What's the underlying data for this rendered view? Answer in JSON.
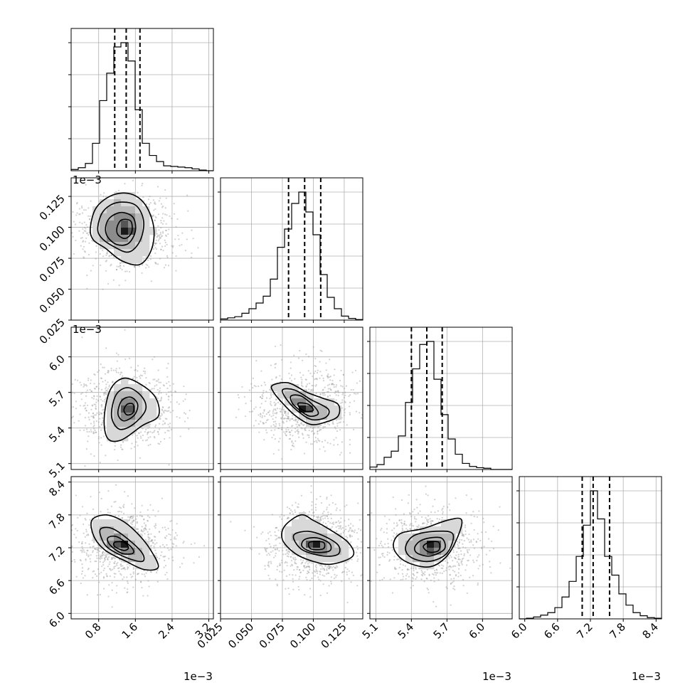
{
  "chart_data": {
    "type": "corner",
    "grid": true,
    "quantile_line_style": "dashed",
    "parameters": [
      {
        "range": [
          0.2,
          3.3
        ],
        "ticks": [
          0.8,
          1.6,
          2.4,
          3.2
        ],
        "tick_labels": [
          "0.8",
          "1.6",
          "2.4",
          "3.2"
        ],
        "offset_label": "1e−3",
        "quantiles": [
          1.15,
          1.4,
          1.7
        ],
        "mode": 1.4
      },
      {
        "range": [
          0.025,
          0.14
        ],
        "ticks": [
          0.025,
          0.05,
          0.075,
          0.1,
          0.125
        ],
        "tick_labels": [
          "0.025",
          "0.050",
          "0.075",
          "0.100",
          "0.125"
        ],
        "offset_label": "",
        "quantiles": [
          0.08,
          0.093,
          0.106
        ],
        "mode": 0.095
      },
      {
        "range": [
          5.05,
          6.25
        ],
        "ticks": [
          5.1,
          5.4,
          5.7,
          6.0
        ],
        "tick_labels": [
          "5.1",
          "5.4",
          "5.7",
          "6.0"
        ],
        "offset_label": "1e−3",
        "quantiles": [
          5.4,
          5.53,
          5.66
        ],
        "mode": 5.55
      },
      {
        "range": [
          5.9,
          8.5
        ],
        "ticks": [
          6.0,
          6.6,
          7.2,
          7.8,
          8.4
        ],
        "tick_labels": [
          "6.0",
          "6.6",
          "7.2",
          "7.8",
          "8.4"
        ],
        "offset_label": "1e−3",
        "quantiles": [
          7.05,
          7.25,
          7.55
        ],
        "mode": 7.25
      }
    ],
    "histograms": [
      {
        "param": 0,
        "bin_edges": [
          0.2,
          0.355,
          0.51,
          0.665,
          0.82,
          0.975,
          1.13,
          1.285,
          1.44,
          1.595,
          1.75,
          1.905,
          2.06,
          2.215,
          2.37,
          2.525,
          2.68,
          2.835,
          2.99,
          3.145,
          3.3
        ],
        "counts": [
          2,
          5,
          12,
          45,
          115,
          160,
          203,
          210,
          180,
          100,
          45,
          25,
          15,
          8,
          7,
          6,
          5,
          3,
          1,
          0
        ]
      },
      {
        "param": 1,
        "bin_edges": [
          0.025,
          0.03075,
          0.0365,
          0.04225,
          0.048,
          0.05375,
          0.0595,
          0.06525,
          0.071,
          0.07675,
          0.0825,
          0.08825,
          0.094,
          0.09975,
          0.1055,
          0.11125,
          0.117,
          0.12275,
          0.1285,
          0.13425,
          0.14
        ],
        "counts": [
          2,
          4,
          6,
          12,
          20,
          30,
          42,
          72,
          128,
          160,
          205,
          225,
          190,
          150,
          80,
          40,
          20,
          7,
          3,
          1
        ]
      },
      {
        "param": 2,
        "bin_edges": [
          5.05,
          5.11,
          5.17,
          5.23,
          5.29,
          5.35,
          5.41,
          5.47,
          5.53,
          5.59,
          5.65,
          5.71,
          5.77,
          5.83,
          5.89,
          5.95,
          6.01,
          6.07,
          6.13,
          6.19,
          6.25
        ],
        "counts": [
          4,
          8,
          20,
          30,
          55,
          110,
          165,
          205,
          210,
          148,
          90,
          50,
          25,
          10,
          5,
          3,
          2,
          0,
          0,
          0
        ]
      },
      {
        "param": 3,
        "bin_edges": [
          5.9,
          6.03,
          6.16,
          6.29,
          6.42,
          6.55,
          6.68,
          6.81,
          6.94,
          7.07,
          7.2,
          7.33,
          7.46,
          7.59,
          7.72,
          7.85,
          7.98,
          8.11,
          8.24,
          8.37,
          8.5
        ],
        "counts": [
          0,
          1,
          3,
          6,
          10,
          18,
          35,
          60,
          100,
          150,
          205,
          160,
          100,
          70,
          40,
          22,
          10,
          5,
          2,
          1
        ]
      }
    ],
    "joint_distributions": [
      {
        "x_param": 0,
        "y_param": 1,
        "peak": [
          1.4,
          0.097
        ],
        "levels": [
          [
            [
              0.62,
              0.1
            ],
            [
              0.75,
              0.116
            ],
            [
              1.1,
              0.126
            ],
            [
              1.5,
              0.127
            ],
            [
              1.82,
              0.118
            ],
            [
              2.0,
              0.1
            ],
            [
              1.95,
              0.082
            ],
            [
              1.7,
              0.07
            ],
            [
              1.3,
              0.073
            ],
            [
              0.95,
              0.083
            ],
            [
              0.68,
              0.09
            ]
          ],
          [
            [
              0.78,
              0.1
            ],
            [
              0.9,
              0.113
            ],
            [
              1.2,
              0.12
            ],
            [
              1.6,
              0.118
            ],
            [
              1.78,
              0.105
            ],
            [
              1.7,
              0.089
            ],
            [
              1.45,
              0.08
            ],
            [
              1.1,
              0.085
            ],
            [
              0.85,
              0.092
            ]
          ],
          [
            [
              0.95,
              0.1
            ],
            [
              1.05,
              0.108
            ],
            [
              1.3,
              0.112
            ],
            [
              1.55,
              0.108
            ],
            [
              1.6,
              0.097
            ],
            [
              1.45,
              0.087
            ],
            [
              1.2,
              0.086
            ],
            [
              1.0,
              0.092
            ]
          ],
          [
            [
              1.2,
              0.1
            ],
            [
              1.3,
              0.106
            ],
            [
              1.5,
              0.105
            ],
            [
              1.52,
              0.096
            ],
            [
              1.38,
              0.091
            ],
            [
              1.22,
              0.094
            ]
          ]
        ]
      },
      {
        "x_param": 0,
        "y_param": 2,
        "peak": [
          1.4,
          5.57
        ],
        "levels": [
          [
            [
              0.92,
              5.48
            ],
            [
              1.05,
              5.72
            ],
            [
              1.35,
              5.82
            ],
            [
              1.75,
              5.76
            ],
            [
              2.05,
              5.65
            ],
            [
              2.1,
              5.5
            ],
            [
              1.75,
              5.42
            ],
            [
              1.3,
              5.3
            ],
            [
              1.0,
              5.31
            ]
          ],
          [
            [
              1.08,
              5.5
            ],
            [
              1.18,
              5.68
            ],
            [
              1.45,
              5.74
            ],
            [
              1.75,
              5.66
            ],
            [
              1.82,
              5.55
            ],
            [
              1.55,
              5.43
            ],
            [
              1.25,
              5.39
            ]
          ],
          [
            [
              1.22,
              5.52
            ],
            [
              1.3,
              5.63
            ],
            [
              1.5,
              5.66
            ],
            [
              1.65,
              5.6
            ],
            [
              1.58,
              5.51
            ],
            [
              1.35,
              5.46
            ]
          ],
          [
            [
              1.35,
              5.55
            ],
            [
              1.42,
              5.6
            ],
            [
              1.55,
              5.6
            ],
            [
              1.55,
              5.53
            ],
            [
              1.42,
              5.51
            ]
          ]
        ]
      },
      {
        "x_param": 1,
        "y_param": 2,
        "peak": [
          0.093,
          5.58
        ],
        "levels": [
          [
            [
              0.067,
              5.76
            ],
            [
              0.08,
              5.78
            ],
            [
              0.095,
              5.7
            ],
            [
              0.108,
              5.65
            ],
            [
              0.12,
              5.6
            ],
            [
              0.12,
              5.5
            ],
            [
              0.11,
              5.45
            ],
            [
              0.098,
              5.43
            ],
            [
              0.086,
              5.5
            ],
            [
              0.076,
              5.6
            ],
            [
              0.068,
              5.7
            ]
          ],
          [
            [
              0.075,
              5.72
            ],
            [
              0.085,
              5.72
            ],
            [
              0.098,
              5.64
            ],
            [
              0.112,
              5.56
            ],
            [
              0.11,
              5.49
            ],
            [
              0.099,
              5.47
            ],
            [
              0.089,
              5.53
            ],
            [
              0.08,
              5.62
            ]
          ],
          [
            [
              0.082,
              5.67
            ],
            [
              0.09,
              5.67
            ],
            [
              0.1,
              5.59
            ],
            [
              0.104,
              5.52
            ],
            [
              0.097,
              5.5
            ],
            [
              0.089,
              5.55
            ],
            [
              0.083,
              5.61
            ]
          ],
          [
            [
              0.088,
              5.61
            ],
            [
              0.096,
              5.6
            ],
            [
              0.1,
              5.55
            ],
            [
              0.094,
              5.54
            ],
            [
              0.089,
              5.57
            ]
          ]
        ]
      },
      {
        "x_param": 0,
        "y_param": 3,
        "peak": [
          1.3,
          7.25
        ],
        "levels": [
          [
            [
              0.65,
              7.7
            ],
            [
              0.95,
              7.8
            ],
            [
              1.3,
              7.7
            ],
            [
              1.6,
              7.5
            ],
            [
              1.9,
              7.2
            ],
            [
              2.1,
              6.85
            ],
            [
              1.8,
              6.8
            ],
            [
              1.4,
              6.95
            ],
            [
              0.95,
              7.15
            ],
            [
              0.7,
              7.4
            ]
          ],
          [
            [
              0.85,
              7.55
            ],
            [
              1.1,
              7.55
            ],
            [
              1.45,
              7.35
            ],
            [
              1.75,
              7.1
            ],
            [
              1.75,
              6.95
            ],
            [
              1.4,
              7.02
            ],
            [
              1.0,
              7.2
            ],
            [
              0.85,
              7.4
            ]
          ],
          [
            [
              1.0,
              7.38
            ],
            [
              1.2,
              7.4
            ],
            [
              1.5,
              7.22
            ],
            [
              1.55,
              7.1
            ],
            [
              1.3,
              7.1
            ],
            [
              1.05,
              7.25
            ]
          ],
          [
            [
              1.15,
              7.3
            ],
            [
              1.35,
              7.3
            ],
            [
              1.45,
              7.2
            ],
            [
              1.35,
              7.15
            ],
            [
              1.15,
              7.22
            ]
          ]
        ]
      },
      {
        "x_param": 1,
        "y_param": 3,
        "peak": [
          0.1,
          7.25
        ],
        "levels": [
          [
            [
              0.077,
              7.6
            ],
            [
              0.09,
              7.8
            ],
            [
              0.1,
              7.7
            ],
            [
              0.112,
              7.55
            ],
            [
              0.128,
              7.3
            ],
            [
              0.132,
              7.05
            ],
            [
              0.115,
              6.9
            ],
            [
              0.1,
              6.95
            ],
            [
              0.085,
              7.1
            ],
            [
              0.075,
              7.35
            ]
          ],
          [
            [
              0.085,
              7.45
            ],
            [
              0.096,
              7.5
            ],
            [
              0.108,
              7.42
            ],
            [
              0.12,
              7.25
            ],
            [
              0.12,
              7.08
            ],
            [
              0.108,
              7.05
            ],
            [
              0.092,
              7.15
            ],
            [
              0.085,
              7.32
            ]
          ],
          [
            [
              0.093,
              7.35
            ],
            [
              0.103,
              7.38
            ],
            [
              0.113,
              7.28
            ],
            [
              0.113,
              7.14
            ],
            [
              0.1,
              7.12
            ],
            [
              0.091,
              7.22
            ]
          ],
          [
            [
              0.097,
              7.3
            ],
            [
              0.108,
              7.3
            ],
            [
              0.108,
              7.18
            ],
            [
              0.098,
              7.18
            ]
          ]
        ]
      },
      {
        "x_param": 2,
        "y_param": 3,
        "peak": [
          5.55,
          7.22
        ],
        "levels": [
          [
            [
              5.25,
              7.2
            ],
            [
              5.3,
              7.45
            ],
            [
              5.5,
              7.55
            ],
            [
              5.7,
              7.7
            ],
            [
              5.82,
              7.72
            ],
            [
              5.8,
              7.45
            ],
            [
              5.7,
              7.05
            ],
            [
              5.55,
              6.85
            ],
            [
              5.35,
              6.95
            ]
          ],
          [
            [
              5.35,
              7.2
            ],
            [
              5.42,
              7.42
            ],
            [
              5.6,
              7.5
            ],
            [
              5.75,
              7.45
            ],
            [
              5.7,
              7.1
            ],
            [
              5.55,
              6.95
            ],
            [
              5.4,
              7.02
            ]
          ],
          [
            [
              5.43,
              7.22
            ],
            [
              5.5,
              7.35
            ],
            [
              5.65,
              7.38
            ],
            [
              5.68,
              7.18
            ],
            [
              5.56,
              7.05
            ],
            [
              5.45,
              7.1
            ]
          ],
          [
            [
              5.5,
              7.22
            ],
            [
              5.55,
              7.3
            ],
            [
              5.63,
              7.3
            ],
            [
              5.63,
              7.15
            ],
            [
              5.55,
              7.12
            ]
          ]
        ]
      }
    ]
  }
}
